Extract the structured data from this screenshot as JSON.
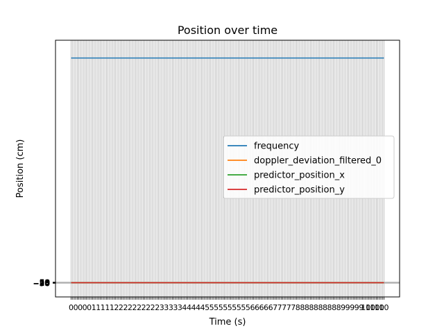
{
  "chart_data": {
    "type": "line",
    "title": "Position over time",
    "xlabel": "Time (s)",
    "ylabel": "Position (cm)",
    "xlim": [
      -0.5,
      10.5
    ],
    "ylim": [
      -1200,
      20500
    ],
    "x_tick_labels": [
      "0",
      "1",
      "2",
      "2",
      "3",
      "4",
      "5",
      "5",
      "6",
      "7",
      "8",
      "8",
      "9",
      "10"
    ],
    "y_tick_labels": [
      "−50",
      "−25",
      "0",
      "25",
      "50"
    ],
    "grid": true,
    "legend_position": "center-right",
    "series": [
      {
        "name": "frequency",
        "color": "#1f77b4",
        "x": [
          0,
          10
        ],
        "y": [
          19000,
          19000
        ]
      },
      {
        "name": "doppler_deviation_filtered_0",
        "color": "#ff7f0e",
        "x": [
          0,
          10
        ],
        "y": [
          0,
          0
        ]
      },
      {
        "name": "predictor_position_x",
        "color": "#2ca02c",
        "x": [
          0,
          10
        ],
        "y": [
          0,
          0
        ]
      },
      {
        "name": "predictor_position_y",
        "color": "#d62728",
        "x": [
          0,
          10
        ],
        "y": [
          0,
          0
        ]
      }
    ]
  }
}
